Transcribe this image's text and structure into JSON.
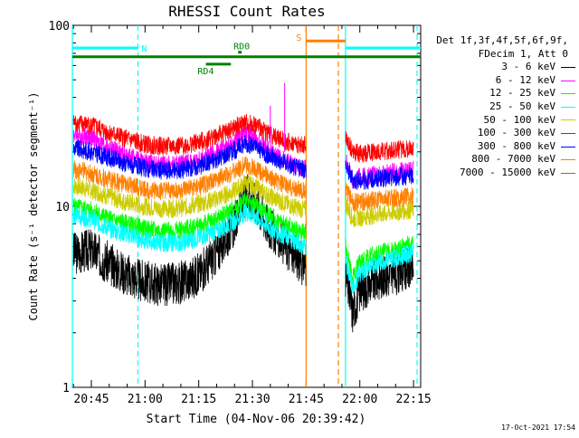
{
  "chart_data": {
    "type": "line",
    "title": "RHESSI Count Rates",
    "xlabel": "Start Time (04-Nov-06 20:39:42)",
    "ylabel": "Count Rate (s⁻¹ detector segment⁻¹)",
    "yscale": "log",
    "ylim": [
      1,
      100
    ],
    "yticks": [
      "1",
      "10",
      "100"
    ],
    "xlim": [
      "20:39:42",
      "22:17:00"
    ],
    "xticks": [
      "20:45",
      "21:00",
      "21:15",
      "21:30",
      "21:45",
      "22:00",
      "22:15"
    ],
    "legend": {
      "placement": "right",
      "header": [
        "Det 1f,3f,4f,5f,6f,9f,",
        "FDecim 1, Att 0"
      ]
    },
    "series": [
      {
        "name": "3 - 6 keV",
        "color": "#000000",
        "x": [
          "20:40",
          "20:45",
          "20:50",
          "20:55",
          "21:00",
          "21:05",
          "21:10",
          "21:15",
          "21:20",
          "21:25",
          "21:28",
          "21:31",
          "21:35",
          "21:40",
          "21:44",
          "21:56",
          "21:58",
          "22:00",
          "22:05",
          "22:10",
          "22:15"
        ],
        "y": [
          5.5,
          5.8,
          4.8,
          4.2,
          3.8,
          3.7,
          3.8,
          4.2,
          5.5,
          8.0,
          11.5,
          10.5,
          7.5,
          5.8,
          4.8,
          4.2,
          2.6,
          3.4,
          4.0,
          4.2,
          4.6
        ]
      },
      {
        "name": "6 - 12 keV",
        "color": "#ff00ff",
        "x": [
          "20:40",
          "20:45",
          "20:50",
          "20:55",
          "21:00",
          "21:05",
          "21:10",
          "21:15",
          "21:20",
          "21:25",
          "21:28",
          "21:31",
          "21:35",
          "21:40",
          "21:44",
          "21:56",
          "21:58",
          "22:00",
          "22:05",
          "22:10",
          "22:15"
        ],
        "y": [
          25,
          24,
          21,
          19,
          17.5,
          17,
          17,
          18,
          20,
          23,
          26,
          24,
          20,
          17.5,
          16,
          18,
          14,
          14.5,
          15,
          15.5,
          16
        ]
      },
      {
        "name": "12 - 25 keV",
        "color": "#00ff00",
        "x": [
          "20:40",
          "20:45",
          "20:50",
          "20:55",
          "21:00",
          "21:05",
          "21:10",
          "21:15",
          "21:20",
          "21:25",
          "21:28",
          "21:31",
          "21:35",
          "21:40",
          "21:44",
          "21:56",
          "21:58",
          "22:00",
          "22:05",
          "22:10",
          "22:15"
        ],
        "y": [
          10,
          9.5,
          8.5,
          8,
          7.5,
          7.3,
          7.4,
          7.8,
          8.5,
          9.8,
          10.8,
          10,
          8.8,
          7.8,
          7.2,
          6,
          4,
          5,
          5.5,
          5.8,
          6.2
        ]
      },
      {
        "name": "25 - 50 keV",
        "color": "#00ffff",
        "x": [
          "20:40",
          "20:45",
          "20:50",
          "20:55",
          "21:00",
          "21:05",
          "21:10",
          "21:15",
          "21:20",
          "21:25",
          "21:28",
          "21:31",
          "21:35",
          "21:40",
          "21:44",
          "21:56",
          "21:58",
          "22:00",
          "22:05",
          "22:10",
          "22:15"
        ],
        "y": [
          9,
          8.5,
          7.5,
          7,
          6.5,
          6.3,
          6.3,
          6.7,
          7.3,
          8.3,
          9.3,
          8.7,
          7.6,
          6.7,
          6.1,
          5,
          3.5,
          4.3,
          4.9,
          5.2,
          5.6
        ]
      },
      {
        "name": "50 - 100 keV",
        "color": "#cccc00",
        "x": [
          "20:40",
          "20:45",
          "20:50",
          "20:55",
          "21:00",
          "21:05",
          "21:10",
          "21:15",
          "21:20",
          "21:25",
          "21:28",
          "21:31",
          "21:35",
          "21:40",
          "21:44",
          "21:56",
          "21:58",
          "22:00",
          "22:05",
          "22:10",
          "22:15"
        ],
        "y": [
          13,
          12.3,
          11.3,
          10.5,
          10,
          9.7,
          9.8,
          10.3,
          11,
          12.2,
          13.5,
          12.7,
          11.3,
          10.2,
          9.6,
          10.5,
          8.5,
          8.7,
          9,
          9.3,
          9.6
        ]
      },
      {
        "name": "100 - 300 keV",
        "color": "#ff0000",
        "x": [
          "20:40",
          "20:45",
          "20:50",
          "20:55",
          "21:00",
          "21:05",
          "21:10",
          "21:15",
          "21:20",
          "21:25",
          "21:28",
          "21:31",
          "21:35",
          "21:40",
          "21:44",
          "21:56",
          "21:58",
          "22:00",
          "22:05",
          "22:10",
          "22:15"
        ],
        "y": [
          29,
          28,
          25.5,
          23.5,
          22,
          21.5,
          21.5,
          22.5,
          24.5,
          27,
          29,
          28,
          25,
          22.5,
          21.5,
          24,
          20,
          19.5,
          20,
          20.5,
          20.8
        ]
      },
      {
        "name": "300 - 800 keV",
        "color": "#0000ff",
        "x": [
          "20:40",
          "20:45",
          "20:50",
          "20:55",
          "21:00",
          "21:05",
          "21:10",
          "21:15",
          "21:20",
          "21:25",
          "21:28",
          "21:31",
          "21:35",
          "21:40",
          "21:44",
          "21:56",
          "21:58",
          "22:00",
          "22:05",
          "22:10",
          "22:15"
        ],
        "y": [
          21,
          20,
          18.5,
          17.2,
          16.2,
          15.8,
          15.9,
          16.7,
          18.2,
          20.5,
          22.5,
          21.2,
          18.8,
          17,
          16,
          17,
          14,
          13.8,
          14.2,
          14.5,
          14.8
        ]
      },
      {
        "name": "800 - 7000 keV",
        "color": "#ff8000",
        "x": [
          "20:40",
          "20:45",
          "20:50",
          "20:55",
          "21:00",
          "21:05",
          "21:10",
          "21:15",
          "21:20",
          "21:25",
          "21:28",
          "21:31",
          "21:35",
          "21:40",
          "21:44",
          "21:56",
          "21:58",
          "22:00",
          "22:05",
          "22:10",
          "22:15"
        ],
        "y": [
          16,
          15.3,
          14,
          13.1,
          12.4,
          12.1,
          12.2,
          12.8,
          14,
          15.6,
          17,
          16.1,
          14.3,
          12.9,
          12.2,
          12.5,
          10.5,
          10.6,
          10.9,
          11.1,
          11.4
        ]
      },
      {
        "name": "7000 - 15000 keV",
        "color": "#808000",
        "x": [],
        "y": []
      }
    ],
    "annotations": [
      {
        "label": "N",
        "kind": "night",
        "x": [
          "20:39:42",
          "20:58"
        ],
        "y": 75,
        "color": "#00ffff"
      },
      {
        "label": "",
        "kind": "night",
        "x": [
          "21:56",
          "22:17"
        ],
        "y": 75,
        "color": "#00ffff"
      },
      {
        "label": "S",
        "kind": "saa",
        "x": [
          "21:45",
          "21:56"
        ],
        "y": 82,
        "color": "#ff8000"
      },
      {
        "label": "",
        "kind": "attenuator",
        "x": [
          "20:39:42",
          "22:17"
        ],
        "y": 67,
        "color": "#008000"
      },
      {
        "label": "RD0",
        "kind": "decimation",
        "x": [
          "21:26",
          "21:27"
        ],
        "y": 71,
        "color": "#008000"
      },
      {
        "label": "RD4",
        "kind": "decimation",
        "x": [
          "21:17",
          "21:24"
        ],
        "y": 61,
        "color": "#008000"
      }
    ],
    "vlines": [
      {
        "x": "20:39:42",
        "color": "#00ffff",
        "style": "solid"
      },
      {
        "x": "20:58",
        "color": "#00ffff",
        "style": "dashed"
      },
      {
        "x": "21:45",
        "color": "#ff8000",
        "style": "solid"
      },
      {
        "x": "21:54",
        "color": "#ff8000",
        "style": "dashed"
      },
      {
        "x": "21:56",
        "color": "#00ffff",
        "style": "solid"
      },
      {
        "x": "22:16",
        "color": "#00ffff",
        "style": "dashed"
      }
    ],
    "gaps": [
      [
        "21:45",
        "21:56"
      ]
    ],
    "spikes": [
      {
        "series": "6 - 12 keV",
        "x": "21:39",
        "y": 48
      },
      {
        "series": "6 - 12 keV",
        "x": "21:35",
        "y": 36
      }
    ]
  },
  "footer": {
    "timestamp": "17-Oct-2021 17:54"
  }
}
